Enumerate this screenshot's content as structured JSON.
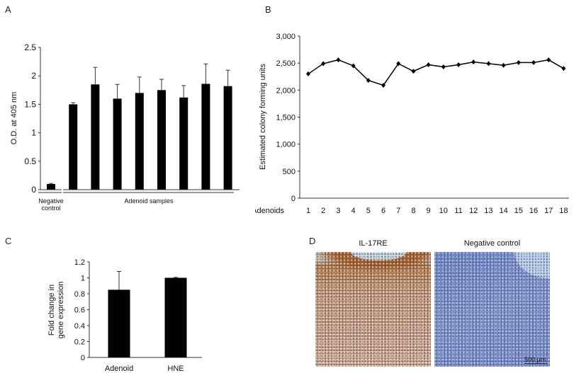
{
  "panels": {
    "a": "A",
    "b": "B",
    "c": "C",
    "d": "D"
  },
  "chart_data": [
    {
      "type": "bar",
      "ylabel": "O.D. at 405 nm",
      "ylim": [
        0,
        2.5
      ],
      "yticks": [
        "0",
        "0.5",
        "1",
        "1.5",
        "2",
        "2.5"
      ],
      "group_labels": [
        "Negative control",
        "Adenoid samples"
      ],
      "values": [
        0.1,
        1.5,
        1.85,
        1.6,
        1.7,
        1.75,
        1.62,
        1.86,
        1.82
      ],
      "error_upper": [
        0.11,
        1.53,
        2.15,
        1.85,
        1.98,
        1.94,
        1.83,
        2.21,
        2.1
      ],
      "color": "#000000"
    },
    {
      "type": "line",
      "ylabel": "Estimated colony forming units",
      "xlabel": "Adenoids",
      "ylim": [
        0,
        3000
      ],
      "yticks": [
        "0",
        "500",
        "1,000",
        "1,500",
        "2,000",
        "2,500",
        "3,000"
      ],
      "categories": [
        "1",
        "2",
        "3",
        "4",
        "5",
        "6",
        "7",
        "8",
        "9",
        "10",
        "11",
        "12",
        "13",
        "14",
        "15",
        "16",
        "17",
        "18"
      ],
      "values": [
        2300,
        2490,
        2560,
        2450,
        2180,
        2090,
        2490,
        2350,
        2470,
        2430,
        2470,
        2520,
        2490,
        2460,
        2510,
        2510,
        2560,
        2400
      ],
      "marker": "diamond",
      "color": "#000000"
    },
    {
      "type": "bar",
      "ylabel": "Fold change in gene expression",
      "ylabel_lines": [
        "Fold change in",
        "gene expression"
      ],
      "ylim": [
        0,
        1.2
      ],
      "yticks": [
        "0",
        "0.2",
        "0.4",
        "0.6",
        "0.8",
        "1",
        "1.2"
      ],
      "categories": [
        "Adenoid",
        "HNE"
      ],
      "values": [
        0.85,
        1.0
      ],
      "error_upper": [
        1.08,
        1.005
      ],
      "color": "#000000"
    }
  ],
  "micrographs": {
    "left_title": "IL-17RE",
    "right_title": "Negative control",
    "scale_bar": "500 µm"
  }
}
